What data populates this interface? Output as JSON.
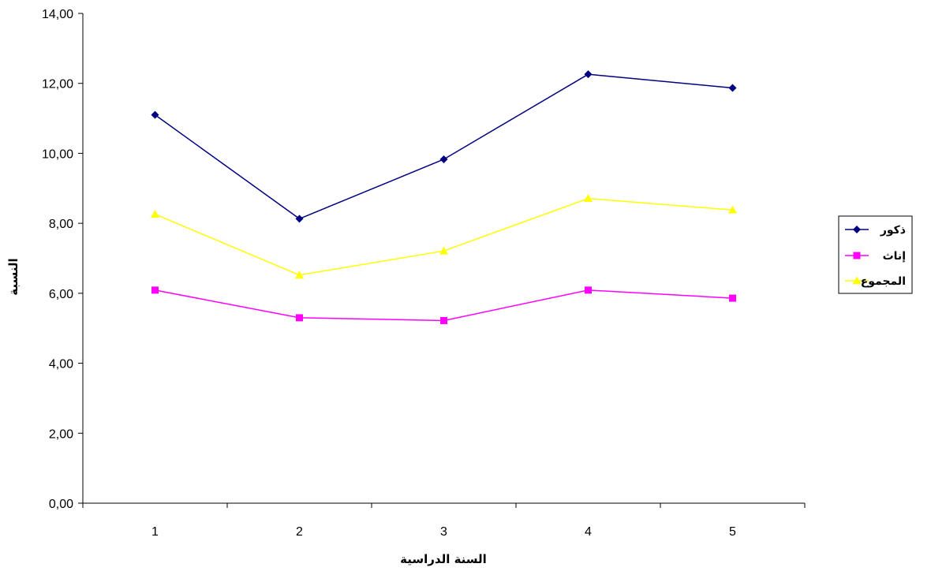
{
  "chart_data": {
    "type": "line",
    "categories": [
      "1",
      "2",
      "3",
      "4",
      "5"
    ],
    "series": [
      {
        "name": "ذكور",
        "values": [
          11.1,
          8.13,
          9.83,
          12.26,
          11.87
        ],
        "color": "#000080",
        "marker": "diamond"
      },
      {
        "name": "إناث",
        "values": [
          6.09,
          5.3,
          5.22,
          6.09,
          5.86
        ],
        "color": "#ff00ff",
        "marker": "square"
      },
      {
        "name": "المجموع",
        "values": [
          8.26,
          6.52,
          7.21,
          8.71,
          8.38
        ],
        "color": "#ffff00",
        "marker": "triangle"
      }
    ],
    "xlabel": "السنة الدراسية",
    "ylabel": "النسبة",
    "ylim": [
      0,
      14
    ],
    "yticks": [
      "0,00",
      "2,00",
      "4,00",
      "6,00",
      "8,00",
      "10,00",
      "12,00",
      "14,00"
    ],
    "grid": false,
    "legend_position": "right"
  }
}
